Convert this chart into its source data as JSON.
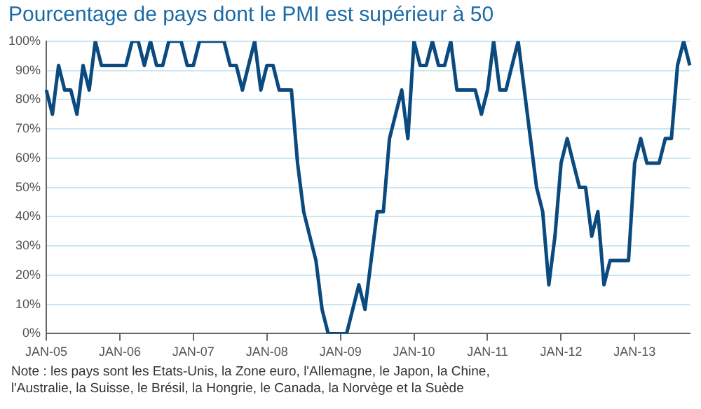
{
  "chart_data": {
    "type": "line",
    "title": "Pourcentage de pays dont le PMI est supérieur à 50",
    "categories": [
      "JAN-05",
      null,
      null,
      null,
      null,
      null,
      null,
      null,
      null,
      null,
      null,
      null,
      "JAN-06",
      null,
      null,
      null,
      null,
      null,
      null,
      null,
      null,
      null,
      null,
      null,
      "JAN-07",
      null,
      null,
      null,
      null,
      null,
      null,
      null,
      null,
      null,
      null,
      null,
      "JAN-08",
      null,
      null,
      null,
      null,
      null,
      null,
      null,
      null,
      null,
      null,
      null,
      "JAN-09",
      null,
      null,
      null,
      null,
      null,
      null,
      null,
      null,
      null,
      null,
      null,
      "JAN-10",
      null,
      null,
      null,
      null,
      null,
      null,
      null,
      null,
      null,
      null,
      null,
      "JAN-11",
      null,
      null,
      null,
      null,
      null,
      null,
      null,
      null,
      null,
      null,
      null,
      "JAN-12",
      null,
      null,
      null,
      null,
      null,
      null,
      null,
      null,
      null,
      null,
      null,
      "JAN-13",
      null,
      null,
      null,
      null,
      null,
      null,
      null,
      null,
      null
    ],
    "series": [
      {
        "color": "#0b4a7f",
        "values": [
          83.3,
          75,
          91.7,
          83.3,
          83.3,
          75,
          91.7,
          83.3,
          100,
          91.7,
          91.7,
          91.7,
          91.7,
          91.7,
          100,
          100,
          91.7,
          100,
          91.7,
          91.7,
          100,
          100,
          100,
          91.7,
          91.7,
          100,
          100,
          100,
          100,
          100,
          91.7,
          91.7,
          83.3,
          91.7,
          100,
          83.3,
          91.7,
          91.7,
          83.3,
          83.3,
          83.3,
          58.3,
          41.7,
          33.3,
          25,
          8.3,
          0,
          0,
          0,
          0,
          8.3,
          16.7,
          8.3,
          25,
          41.7,
          41.7,
          66.7,
          75,
          83.3,
          66.7,
          100,
          91.7,
          91.7,
          100,
          91.7,
          91.7,
          100,
          83.3,
          83.3,
          83.3,
          83.3,
          75,
          83.3,
          100,
          83.3,
          83.3,
          91.7,
          100,
          83.3,
          66.7,
          50,
          41.7,
          16.7,
          33.3,
          58.3,
          66.7,
          58.3,
          50,
          50,
          33.3,
          41.7,
          16.7,
          25,
          25,
          25,
          25,
          58.3,
          66.7,
          58.3,
          58.3,
          58.3,
          66.7,
          66.7,
          91.7,
          100,
          91.7
        ]
      }
    ],
    "ylim": [
      0,
      100
    ],
    "yticks": [
      {
        "value": 0,
        "label": "0%"
      },
      {
        "value": 10,
        "label": "10%"
      },
      {
        "value": 20,
        "label": "20%"
      },
      {
        "value": 30,
        "label": "30%"
      },
      {
        "value": 40,
        "label": "40%"
      },
      {
        "value": 50,
        "label": "50%"
      },
      {
        "value": 60,
        "label": "60%"
      },
      {
        "value": 70,
        "label": "70%"
      },
      {
        "value": 80,
        "label": "80%"
      },
      {
        "value": 90,
        "label": "90%"
      },
      {
        "value": 100,
        "label": "100%"
      }
    ],
    "grid": "y",
    "marker": "none",
    "line_style": "solid",
    "annotations": [
      "Note : les pays sont les Etats-Unis, la Zone euro, l'Allemagne, le Japon, la Chine, l'Australie, la Suisse, le Brésil, la Hongrie, le Canada, la Norvège et la Suède"
    ]
  }
}
